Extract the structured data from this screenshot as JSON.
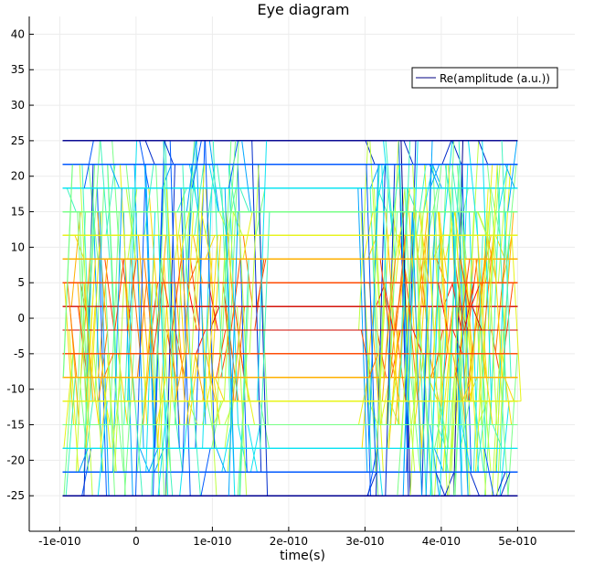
{
  "chart_data": {
    "type": "line",
    "title": "Eye diagram",
    "xlabel": "time(s)",
    "ylabel": "",
    "xlim": [
      -1.4e-10,
      5.75e-10
    ],
    "ylim": [
      -30,
      42.5
    ],
    "x_ticks": [
      {
        "value": -1e-10,
        "label": "-1e-010"
      },
      {
        "value": 0,
        "label": "0"
      },
      {
        "value": 1e-10,
        "label": "1e-010"
      },
      {
        "value": 2e-10,
        "label": "2e-010"
      },
      {
        "value": 3e-10,
        "label": "3e-010"
      },
      {
        "value": 4e-10,
        "label": "4e-010"
      },
      {
        "value": 5e-10,
        "label": "5e-010"
      }
    ],
    "y_ticks": [
      {
        "value": 40,
        "label": "40"
      },
      {
        "value": 35,
        "label": "35"
      },
      {
        "value": 30,
        "label": "30"
      },
      {
        "value": 25,
        "label": "25"
      },
      {
        "value": 20,
        "label": "20"
      },
      {
        "value": 15,
        "label": "15"
      },
      {
        "value": 10,
        "label": "10"
      },
      {
        "value": 5,
        "label": "5"
      },
      {
        "value": 0,
        "label": "0"
      },
      {
        "value": -5,
        "label": "-5"
      },
      {
        "value": -10,
        "label": "-10"
      },
      {
        "value": -15,
        "label": "-15"
      },
      {
        "value": -20,
        "label": "-20"
      },
      {
        "value": -25,
        "label": "-25"
      }
    ],
    "grid": true,
    "legend": {
      "position": "top-right",
      "entries": [
        "Re(amplitude (a.u.))"
      ]
    },
    "signal": {
      "levels": [
        -25,
        -21.67,
        -18.33,
        -15,
        -11.67,
        -8.33,
        -5,
        -1.67,
        1.67,
        5,
        8.33,
        11.67,
        15,
        18.33,
        21.67,
        25
      ],
      "x_start": -9.6e-11,
      "x_end": 5e-10,
      "first_transition_window": [
        -9.6e-11,
        1.75e-10
      ],
      "second_transition_window": [
        2.9e-10,
        5e-10
      ],
      "transition_width": 1.2e-11,
      "color_scale": [
        "#00008f",
        "#0050ff",
        "#00dfff",
        "#60ff9f",
        "#dfff20",
        "#ffd000",
        "#ff7000",
        "#ff1000",
        "#9f0000"
      ]
    }
  }
}
